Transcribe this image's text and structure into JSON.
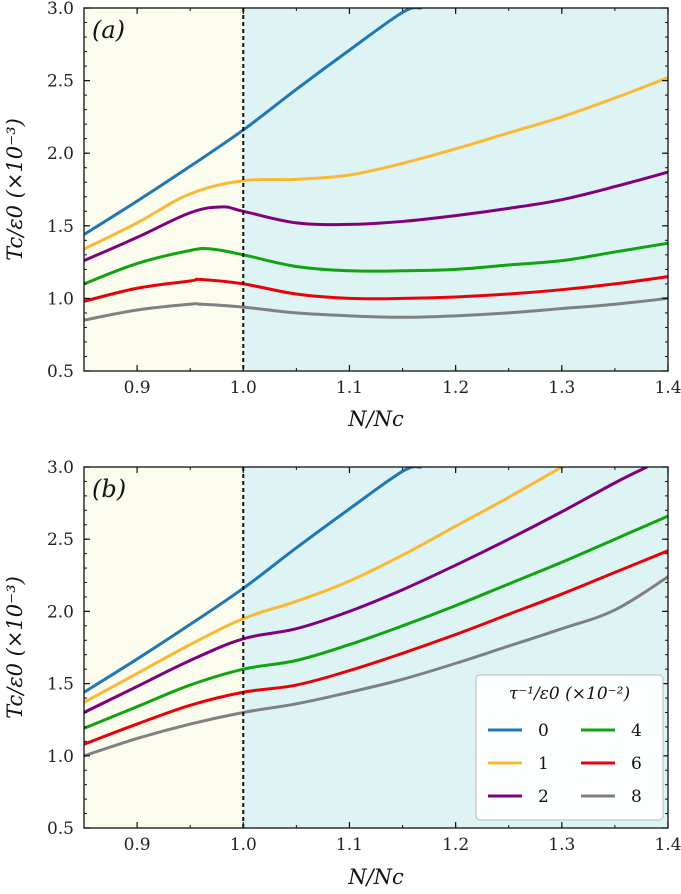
{
  "chart_data": [
    {
      "panel_label": "(a)",
      "type": "line",
      "xlabel": "N/Nc",
      "ylabel": "Tc/ε0 (×10⁻³)",
      "xlim": [
        0.85,
        1.4
      ],
      "ylim": [
        0.5,
        3.0
      ],
      "xticks": [
        "0.9",
        "1.0",
        "1.1",
        "1.2",
        "1.3",
        "1.4"
      ],
      "yticks": [
        "0.5",
        "1.0",
        "1.5",
        "2.0",
        "2.5",
        "3.0"
      ],
      "critical_line_x": 1.0,
      "series": [
        {
          "name": "0",
          "color": "#1f77b4",
          "x": [
            0.85,
            0.9,
            0.95,
            1.0,
            1.05,
            1.1,
            1.15,
            1.167
          ],
          "y": [
            1.44,
            1.67,
            1.91,
            2.16,
            2.44,
            2.71,
            2.97,
            3.0
          ]
        },
        {
          "name": "1",
          "color": "#f9b934",
          "x": [
            0.85,
            0.9,
            0.95,
            1.0,
            1.05,
            1.1,
            1.15,
            1.2,
            1.25,
            1.3,
            1.35,
            1.4
          ],
          "y": [
            1.34,
            1.52,
            1.72,
            1.81,
            1.82,
            1.85,
            1.93,
            2.03,
            2.14,
            2.25,
            2.38,
            2.52
          ]
        },
        {
          "name": "2",
          "color": "#800080",
          "x": [
            0.85,
            0.9,
            0.95,
            0.98,
            1.0,
            1.05,
            1.1,
            1.15,
            1.2,
            1.25,
            1.3,
            1.35,
            1.4
          ],
          "y": [
            1.26,
            1.42,
            1.59,
            1.63,
            1.6,
            1.52,
            1.51,
            1.53,
            1.57,
            1.62,
            1.68,
            1.77,
            1.87
          ]
        },
        {
          "name": "4",
          "color": "#11a311",
          "x": [
            0.85,
            0.9,
            0.95,
            0.97,
            1.0,
            1.05,
            1.1,
            1.15,
            1.2,
            1.25,
            1.3,
            1.35,
            1.4
          ],
          "y": [
            1.1,
            1.24,
            1.33,
            1.34,
            1.3,
            1.22,
            1.19,
            1.19,
            1.2,
            1.23,
            1.26,
            1.32,
            1.38
          ]
        },
        {
          "name": "6",
          "color": "#e8000b",
          "x": [
            0.85,
            0.9,
            0.95,
            0.96,
            1.0,
            1.05,
            1.1,
            1.15,
            1.2,
            1.25,
            1.3,
            1.35,
            1.4
          ],
          "y": [
            0.98,
            1.07,
            1.12,
            1.13,
            1.1,
            1.03,
            1.0,
            1.0,
            1.01,
            1.03,
            1.06,
            1.1,
            1.15
          ]
        },
        {
          "name": "8",
          "color": "#808080",
          "x": [
            0.85,
            0.9,
            0.95,
            0.96,
            1.0,
            1.05,
            1.1,
            1.15,
            1.2,
            1.25,
            1.3,
            1.35,
            1.4
          ],
          "y": [
            0.85,
            0.92,
            0.96,
            0.96,
            0.94,
            0.9,
            0.88,
            0.87,
            0.88,
            0.9,
            0.93,
            0.96,
            1.0
          ]
        }
      ]
    },
    {
      "panel_label": "(b)",
      "type": "line",
      "xlabel": "N/Nc",
      "ylabel": "Tc/ε0 (×10⁻³)",
      "xlim": [
        0.85,
        1.4
      ],
      "ylim": [
        0.5,
        3.0
      ],
      "xticks": [
        "0.9",
        "1.0",
        "1.1",
        "1.2",
        "1.3",
        "1.4"
      ],
      "yticks": [
        "0.5",
        "1.0",
        "1.5",
        "2.0",
        "2.5",
        "3.0"
      ],
      "critical_line_x": 1.0,
      "legend": {
        "title": "τ⁻¹/ε0 (×10⁻²)",
        "position": "bottom-right"
      },
      "series": [
        {
          "name": "0",
          "color": "#1f77b4",
          "x": [
            0.85,
            0.9,
            0.95,
            1.0,
            1.05,
            1.1,
            1.15,
            1.167
          ],
          "y": [
            1.44,
            1.67,
            1.91,
            2.16,
            2.44,
            2.71,
            2.97,
            3.0
          ]
        },
        {
          "name": "1",
          "color": "#f9b934",
          "x": [
            0.85,
            0.9,
            0.95,
            1.0,
            1.05,
            1.1,
            1.15,
            1.2,
            1.25,
            1.3
          ],
          "y": [
            1.37,
            1.57,
            1.77,
            1.95,
            2.07,
            2.21,
            2.39,
            2.59,
            2.79,
            3.0
          ]
        },
        {
          "name": "2",
          "color": "#800080",
          "x": [
            0.85,
            0.9,
            0.95,
            1.0,
            1.05,
            1.1,
            1.15,
            1.2,
            1.25,
            1.3,
            1.35,
            1.38
          ],
          "y": [
            1.3,
            1.48,
            1.66,
            1.81,
            1.88,
            2.0,
            2.15,
            2.32,
            2.5,
            2.69,
            2.89,
            3.0
          ]
        },
        {
          "name": "4",
          "color": "#11a311",
          "x": [
            0.85,
            0.9,
            0.95,
            1.0,
            1.05,
            1.1,
            1.15,
            1.2,
            1.25,
            1.3,
            1.35,
            1.4
          ],
          "y": [
            1.19,
            1.34,
            1.49,
            1.6,
            1.66,
            1.77,
            1.9,
            2.04,
            2.19,
            2.34,
            2.5,
            2.66
          ]
        },
        {
          "name": "6",
          "color": "#e8000b",
          "x": [
            0.85,
            0.9,
            0.95,
            1.0,
            1.05,
            1.1,
            1.15,
            1.2,
            1.25,
            1.3,
            1.35,
            1.4
          ],
          "y": [
            1.08,
            1.22,
            1.35,
            1.44,
            1.49,
            1.59,
            1.71,
            1.84,
            1.98,
            2.12,
            2.27,
            2.42
          ]
        },
        {
          "name": "8",
          "color": "#808080",
          "x": [
            0.85,
            0.9,
            0.95,
            1.0,
            1.05,
            1.1,
            1.15,
            1.2,
            1.25,
            1.3,
            1.35,
            1.4
          ],
          "y": [
            1.0,
            1.12,
            1.22,
            1.3,
            1.36,
            1.44,
            1.53,
            1.64,
            1.76,
            1.88,
            2.01,
            2.24
          ]
        }
      ]
    }
  ]
}
